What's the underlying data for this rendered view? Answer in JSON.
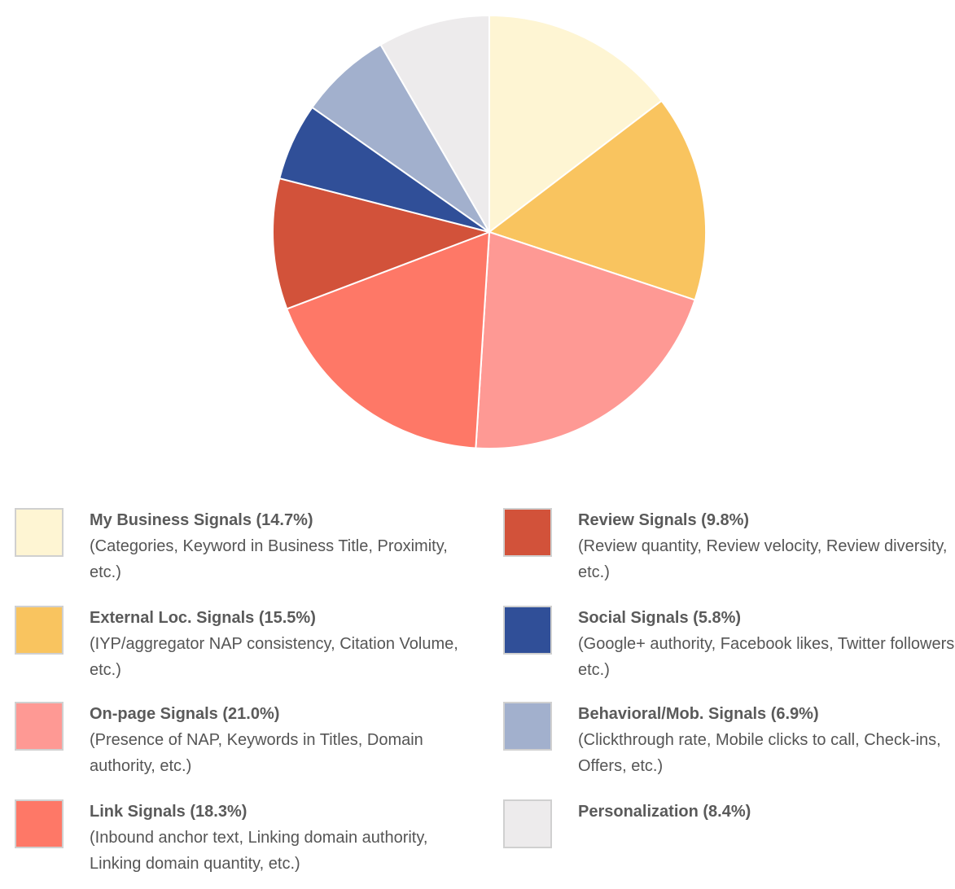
{
  "chart_data": {
    "type": "pie",
    "slices": [
      {
        "label": "My Business Signals (14.7%)",
        "description": "(Categories, Keyword in Business Title, Proximity, etc.)",
        "value": 14.7,
        "color": "#fef5d3"
      },
      {
        "label": "External Loc. Signals (15.5%)",
        "description": "(IYP/aggregator NAP consistency, Citation Volume, etc.)",
        "value": 15.5,
        "color": "#f9c45f"
      },
      {
        "label": "On-page Signals (21.0%)",
        "description": "(Presence of NAP, Keywords in Titles, Domain authority, etc.)",
        "value": 21.0,
        "color": "#fe9994"
      },
      {
        "label": "Link Signals (18.3%)",
        "description": "(Inbound anchor text, Linking domain authority, Linking domain quantity, etc.)",
        "value": 18.3,
        "color": "#fe7867"
      },
      {
        "label": "Review Signals (9.8%)",
        "description": "(Review quantity, Review velocity, Review diversity, etc.)",
        "value": 9.8,
        "color": "#d2523a"
      },
      {
        "label": "Social Signals (5.8%)",
        "description": "(Google+ authority, Facebook likes, Twitter followers, etc.)",
        "value": 5.8,
        "color": "#304f98"
      },
      {
        "label": "Behavioral/Mob. Signals (6.9%)",
        "description": "(Clickthrough rate, Mobile clicks to call, Check-ins, Offers, etc.)",
        "value": 6.9,
        "color": "#a2b0cd"
      },
      {
        "label": "Personalization (8.4%)",
        "description": "",
        "value": 8.4,
        "color": "#edebec"
      }
    ]
  }
}
